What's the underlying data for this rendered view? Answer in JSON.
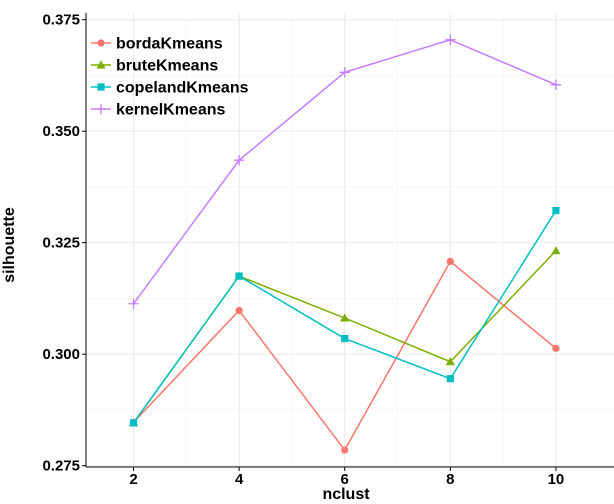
{
  "chart_data": {
    "type": "line",
    "xlabel": "nclust",
    "ylabel": "silhouette",
    "x": [
      2,
      4,
      6,
      8,
      10
    ],
    "x_ticks": [
      "2",
      "4",
      "6",
      "8",
      "10"
    ],
    "y_ticks": [
      "0.275",
      "0.300",
      "0.325",
      "0.350",
      "0.375"
    ],
    "xlim": [
      1.1,
      11.1
    ],
    "ylim": [
      0.2747,
      0.3765
    ],
    "grid": true,
    "legend_position": "top-left",
    "series": [
      {
        "name": "bordaKmeans",
        "color": "#F8766D",
        "marker": "circle",
        "values": [
          0.2847,
          0.3098,
          0.2785,
          0.3208,
          0.3013
        ]
      },
      {
        "name": "bruteKmeans",
        "color": "#7CAE00",
        "marker": "triangle",
        "values": [
          0.2846,
          0.3175,
          0.3081,
          0.2983,
          0.3232
        ]
      },
      {
        "name": "copelandKmeans",
        "color": "#00BFC4",
        "marker": "square",
        "values": [
          0.2846,
          0.3175,
          0.3035,
          0.2945,
          0.3322
        ]
      },
      {
        "name": "kernelKmeans",
        "color": "#C77CFF",
        "marker": "plus",
        "values": [
          0.3113,
          0.3435,
          0.3632,
          0.3705,
          0.3604
        ]
      }
    ]
  }
}
